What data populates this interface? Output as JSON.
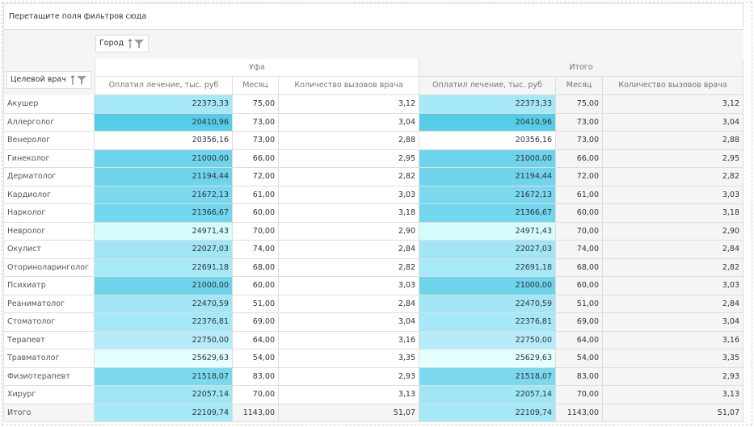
{
  "filter_area": {
    "placeholder": "Перетащите поля фильтров сюда"
  },
  "column_field": "Город",
  "row_field": "Целевой врач",
  "column_groups": [
    "Уфа",
    "Итого"
  ],
  "measures": [
    "Оплатил лечение, тыс. руб",
    "Месяц",
    "Количество вызовов врача",
    "Оплатил лечение, тыс. руб",
    "Месяц",
    "Количество вызовов врача"
  ],
  "rows": [
    {
      "label": "Акушер",
      "color": "#a5e8f7",
      "cells": [
        "22373,33",
        "75,00",
        "3,12",
        "22373,33",
        "75,00",
        "3,12"
      ]
    },
    {
      "label": "Аллерголог",
      "color": "#56cde6",
      "cells": [
        "20410,96",
        "73,00",
        "3,04",
        "20410,96",
        "73,00",
        "3,04"
      ]
    },
    {
      "label": "Венеролог",
      "color": "#ffffff",
      "cells": [
        "20356,16",
        "73,00",
        "2,88",
        "20356,16",
        "73,00",
        "2,88"
      ]
    },
    {
      "label": "Гинеколог",
      "color": "#6dd4ec",
      "cells": [
        "21000,00",
        "66,00",
        "2,95",
        "21000,00",
        "66,00",
        "2,95"
      ]
    },
    {
      "label": "Дерматолог",
      "color": "#6fd5ec",
      "cells": [
        "21194,44",
        "72,00",
        "2,82",
        "21194,44",
        "72,00",
        "2,82"
      ]
    },
    {
      "label": "Кардиолог",
      "color": "#7ad9ef",
      "cells": [
        "21672,13",
        "61,00",
        "3,03",
        "21672,13",
        "61,00",
        "3,03"
      ]
    },
    {
      "label": "Нарколог",
      "color": "#72d6ee",
      "cells": [
        "21366,67",
        "60,00",
        "3,18",
        "21366,67",
        "60,00",
        "3,18"
      ]
    },
    {
      "label": "Невролог",
      "color": "#d5fcfc",
      "cells": [
        "24971,43",
        "70,00",
        "2,90",
        "24971,43",
        "70,00",
        "2,90"
      ]
    },
    {
      "label": "Окулист",
      "color": "#a0e6f5",
      "cells": [
        "22027,03",
        "74,00",
        "2,84",
        "22027,03",
        "74,00",
        "2,84"
      ]
    },
    {
      "label": "Оториноларинголог",
      "color": "#a7e9f7",
      "cells": [
        "22691,18",
        "68,00",
        "2,82",
        "22691,18",
        "68,00",
        "2,82"
      ]
    },
    {
      "label": "Психиатр",
      "color": "#6dd4ec",
      "cells": [
        "21000,00",
        "60,00",
        "3,03",
        "21000,00",
        "60,00",
        "3,03"
      ]
    },
    {
      "label": "Реаниматолог",
      "color": "#a2e7f6",
      "cells": [
        "22470,59",
        "51,00",
        "2,84",
        "22470,59",
        "51,00",
        "2,84"
      ]
    },
    {
      "label": "Стоматолог",
      "color": "#a5e8f7",
      "cells": [
        "22376,81",
        "69,00",
        "3,04",
        "22376,81",
        "69,00",
        "3,04"
      ]
    },
    {
      "label": "Терапевт",
      "color": "#b5ecf8",
      "cells": [
        "22750,00",
        "64,00",
        "3,16",
        "22750,00",
        "64,00",
        "3,16"
      ]
    },
    {
      "label": "Травматолог",
      "color": "#e5fefe",
      "cells": [
        "25629,63",
        "54,00",
        "3,35",
        "25629,63",
        "54,00",
        "3,35"
      ]
    },
    {
      "label": "Физиотерапевт",
      "color": "#7ad9ef",
      "cells": [
        "21518,07",
        "83,00",
        "2,93",
        "21518,07",
        "83,00",
        "2,93"
      ]
    },
    {
      "label": "Хирург",
      "color": "#a0e6f5",
      "cells": [
        "22057,14",
        "70,00",
        "3,13",
        "22057,14",
        "70,00",
        "3,13"
      ]
    }
  ],
  "total": {
    "label": "Итого",
    "color": "#a5e8f7",
    "cells": [
      "22109,74",
      "1143,00",
      "51,07",
      "22109,74",
      "1143,00",
      "51,07"
    ]
  }
}
